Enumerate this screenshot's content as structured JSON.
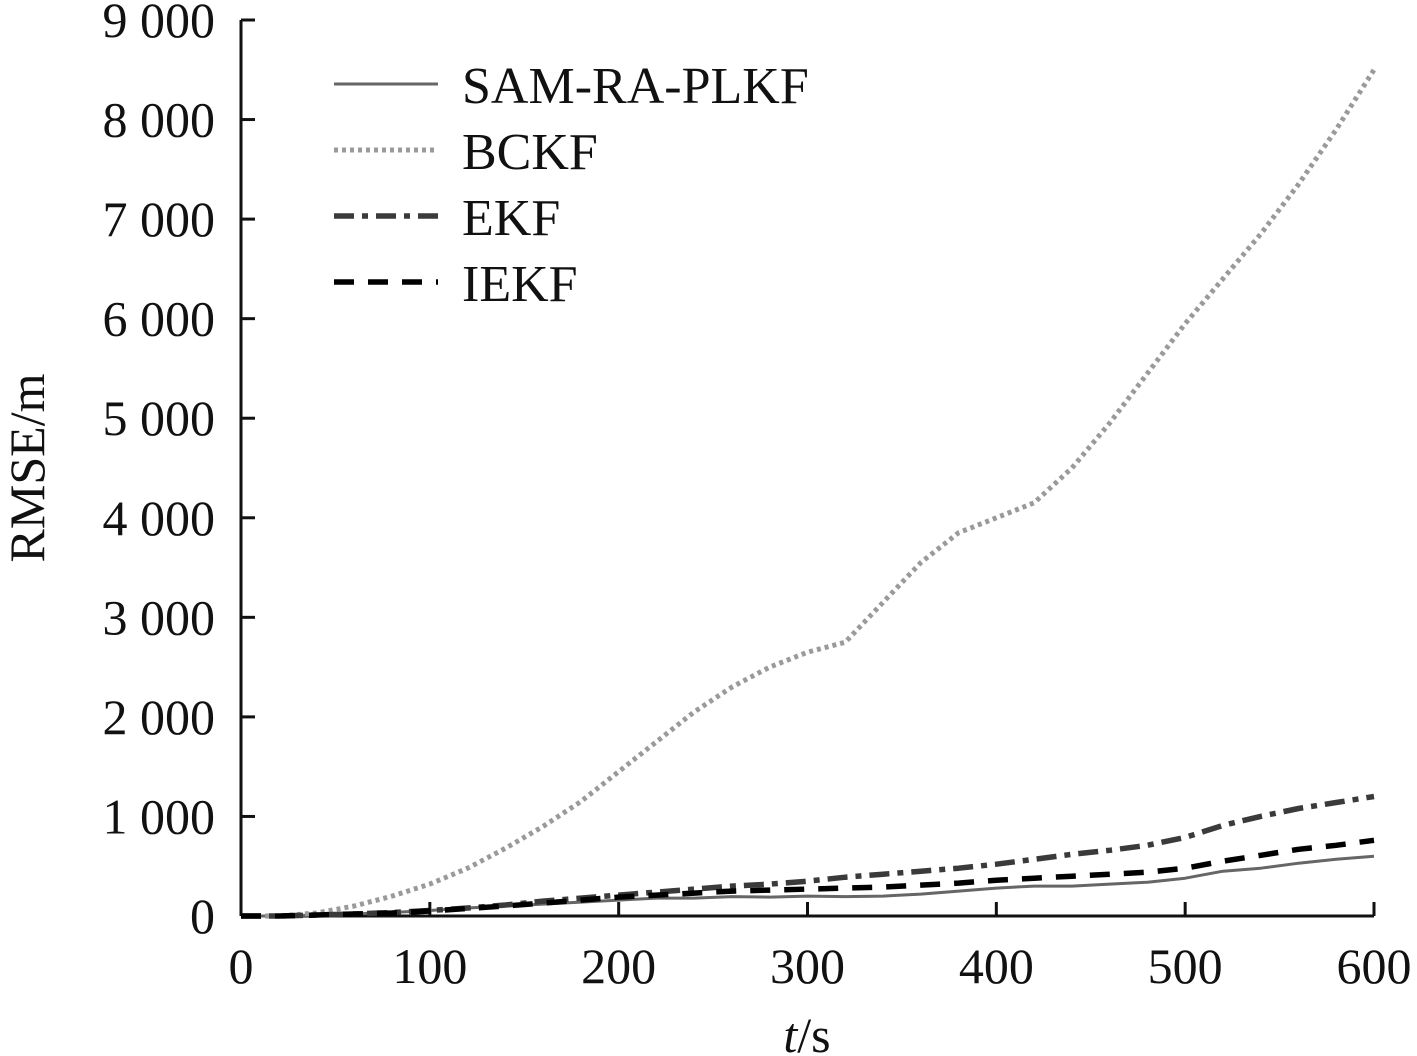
{
  "chart_data": {
    "type": "line",
    "title": "",
    "xlabel": {
      "italic": "t",
      "rest": "/s"
    },
    "ylabel": "RMSE/m",
    "xlim": [
      0,
      600
    ],
    "ylim": [
      0,
      9000
    ],
    "xticks": [
      0,
      100,
      200,
      300,
      400,
      500,
      600
    ],
    "yticks": [
      0,
      1000,
      2000,
      3000,
      4000,
      5000,
      6000,
      7000,
      8000,
      9000
    ],
    "xtick_labels": [
      "0",
      "100",
      "200",
      "300",
      "400",
      "500",
      "600"
    ],
    "ytick_labels": [
      "0",
      "1 000",
      "2 000",
      "3 000",
      "4 000",
      "5 000",
      "6 000",
      "7 000",
      "8 000",
      "9 000"
    ],
    "grid": false,
    "legend": "top-left",
    "series": [
      {
        "name": "SAM-RA-PLKF",
        "style": "solid",
        "color": "#666666",
        "x": [
          0,
          20,
          40,
          60,
          80,
          100,
          120,
          140,
          160,
          180,
          200,
          220,
          240,
          260,
          280,
          300,
          320,
          340,
          360,
          380,
          400,
          420,
          440,
          460,
          480,
          500,
          520,
          540,
          560,
          580,
          600
        ],
        "y": [
          0,
          0,
          10,
          20,
          35,
          55,
          80,
          100,
          120,
          140,
          160,
          180,
          180,
          195,
          190,
          200,
          195,
          200,
          220,
          250,
          280,
          300,
          300,
          320,
          340,
          380,
          450,
          480,
          530,
          570,
          600
        ]
      },
      {
        "name": "BCKF",
        "style": "dotted",
        "color": "#9a9a9a",
        "x": [
          0,
          20,
          40,
          60,
          80,
          100,
          120,
          140,
          160,
          180,
          200,
          220,
          240,
          260,
          280,
          300,
          320,
          340,
          360,
          380,
          400,
          420,
          440,
          460,
          480,
          500,
          520,
          540,
          560,
          580,
          600
        ],
        "y": [
          0,
          0,
          30,
          100,
          200,
          320,
          480,
          680,
          900,
          1150,
          1450,
          1750,
          2050,
          2300,
          2500,
          2650,
          2750,
          3150,
          3550,
          3850,
          4000,
          4150,
          4500,
          4950,
          5450,
          5950,
          6400,
          6850,
          7350,
          7900,
          8500
        ]
      },
      {
        "name": "EKF",
        "style": "dashdot",
        "color": "#3a3a3a",
        "x": [
          0,
          20,
          40,
          60,
          80,
          100,
          120,
          140,
          160,
          180,
          200,
          220,
          240,
          260,
          280,
          300,
          320,
          340,
          360,
          380,
          400,
          420,
          440,
          460,
          480,
          500,
          520,
          540,
          560,
          580,
          600
        ],
        "y": [
          0,
          0,
          10,
          20,
          35,
          55,
          80,
          110,
          150,
          180,
          210,
          240,
          270,
          300,
          320,
          350,
          390,
          420,
          450,
          480,
          520,
          570,
          620,
          660,
          710,
          790,
          910,
          1000,
          1080,
          1140,
          1200
        ]
      },
      {
        "name": "IEKF",
        "style": "dashed",
        "color": "#000000",
        "x": [
          0,
          20,
          40,
          60,
          80,
          100,
          120,
          140,
          160,
          180,
          200,
          220,
          240,
          260,
          280,
          300,
          320,
          340,
          360,
          380,
          400,
          420,
          440,
          460,
          480,
          500,
          520,
          540,
          560,
          580,
          600
        ],
        "y": [
          0,
          0,
          10,
          20,
          30,
          50,
          75,
          100,
          130,
          160,
          190,
          210,
          230,
          250,
          260,
          270,
          280,
          290,
          310,
          330,
          360,
          380,
          400,
          420,
          440,
          480,
          550,
          610,
          670,
          710,
          760
        ]
      }
    ]
  }
}
